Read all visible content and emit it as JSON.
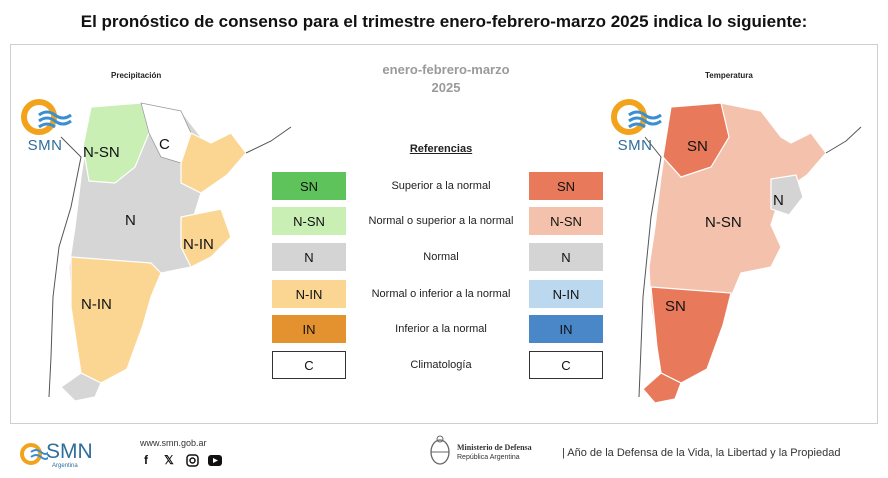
{
  "headline": "El pronóstico de consenso para el trimestre enero-febrero-marzo 2025 indica lo siguiente:",
  "maps": {
    "precip_title": "Precipitación",
    "temp_title": "Temperatura",
    "precip_labels": [
      "N-SN",
      "C",
      "N",
      "N-IN",
      "N-IN"
    ],
    "temp_labels": [
      "SN",
      "N",
      "N-SN",
      "SN"
    ]
  },
  "period": {
    "line1": "enero-febrero-marzo",
    "line2": "2025"
  },
  "references": {
    "title": "Referencias",
    "rows": [
      {
        "code_precip": "SN",
        "label": "Superior a la normal",
        "code_temp": "SN",
        "color_precip": "#5ec35a",
        "color_temp": "#e8795a"
      },
      {
        "code_precip": "N-SN",
        "label": "Normal o superior a la normal",
        "code_temp": "N-SN",
        "color_precip": "#c9efb4",
        "color_temp": "#f4c2ac"
      },
      {
        "code_precip": "N",
        "label": "Normal",
        "code_temp": "N",
        "color_precip": "#d4d4d4",
        "color_temp": "#d4d4d4"
      },
      {
        "code_precip": "N-IN",
        "label": "Normal o inferior a la normal",
        "code_temp": "N-IN",
        "color_precip": "#fbd693",
        "color_temp": "#bcd8ef"
      },
      {
        "code_precip": "IN",
        "label": "Inferior a la normal",
        "code_temp": "IN",
        "color_precip": "#e3922f",
        "color_temp": "#4a87c9"
      },
      {
        "code_precip": "C",
        "label": "Climatología",
        "code_temp": "C",
        "color_precip": "#ffffff",
        "color_temp": "#ffffff"
      }
    ]
  },
  "logo_text": "SMN",
  "footer": {
    "logo": "SMN",
    "logo_sub": "Argentina",
    "website": "www.smn.gob.ar",
    "social_icons": [
      "facebook-icon",
      "x-icon",
      "instagram-icon",
      "youtube-icon"
    ],
    "ministry_line1": "Ministerio de Defensa",
    "ministry_line2": "República Argentina",
    "motto": "| Año de la Defensa de la Vida, la Libertad y la Propiedad"
  }
}
